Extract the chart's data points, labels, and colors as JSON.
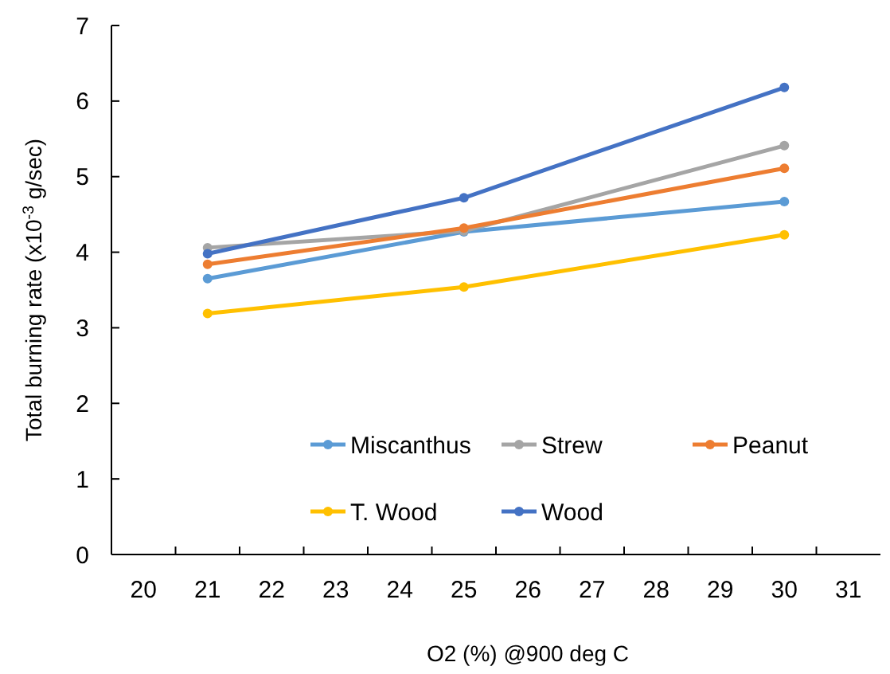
{
  "chart_data": {
    "type": "line",
    "xlabel": "O2 (%) @900 deg C",
    "ylabel": "Total burning rate (x10$^{-3}$ g/sec)",
    "x": [
      21,
      25,
      30
    ],
    "xlim": [
      19.5,
      31.5
    ],
    "xticks": [
      20,
      {
        "value": 20.5,
        "label": null
      },
      21,
      {
        "value": 21.5,
        "label": null
      },
      22,
      {
        "value": 22.5,
        "label": null
      },
      23,
      {
        "value": 23.5,
        "label": null
      },
      24,
      {
        "value": 24.5,
        "label": null
      },
      25,
      {
        "value": 25.5,
        "label": null
      },
      26,
      {
        "value": 26.5,
        "label": null
      },
      27,
      {
        "value": 27.5,
        "label": null
      },
      28,
      {
        "value": 28.5,
        "label": null
      },
      29,
      {
        "value": 29.5,
        "label": null
      },
      30,
      {
        "value": 30.5,
        "label": null
      },
      31
    ],
    "ylim": [
      0,
      7
    ],
    "yticks": [
      0,
      1,
      2,
      3,
      4,
      5,
      6,
      7
    ],
    "grid": false,
    "legend": "bottom",
    "marker": "circle",
    "line_style": "solid",
    "series": [
      {
        "name": "Miscanthus",
        "color": "#5b9bd5",
        "values": [
          3.65,
          4.27,
          4.67
        ]
      },
      {
        "name": "Strew",
        "color": "#a5a5a5",
        "values": [
          4.06,
          4.28,
          5.41
        ]
      },
      {
        "name": "Peanut",
        "color": "#ed7d31",
        "values": [
          3.84,
          4.32,
          5.11
        ]
      },
      {
        "name": "T. Wood",
        "color": "#ffc000",
        "values": [
          3.19,
          3.54,
          4.23
        ]
      },
      {
        "name": "Wood",
        "color": "#4472c4",
        "values": [
          3.98,
          4.72,
          6.18
        ]
      }
    ]
  }
}
